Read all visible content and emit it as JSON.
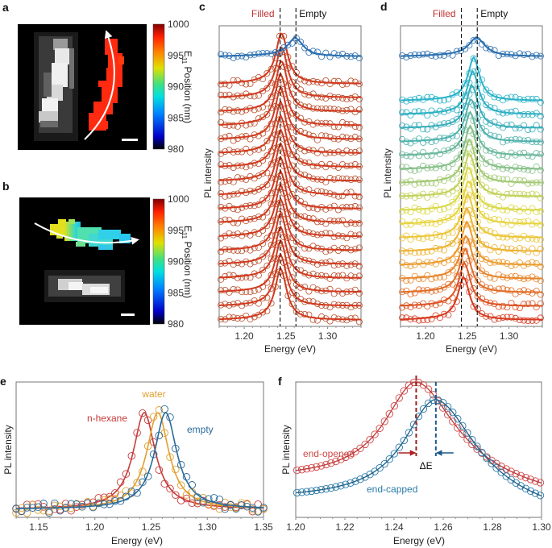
{
  "figure": {
    "panels": [
      "a",
      "b",
      "c",
      "d",
      "e",
      "f"
    ]
  },
  "chart_data": [
    {
      "id": "a",
      "type": "heatmap",
      "label": "a",
      "description": "PL image (grayscale) and E11 position map of a single nanotube with curved arrow and scale bar",
      "colorbar": {
        "label_main": "E",
        "label_sub": "11",
        "label_rest": " Position (nm)",
        "ticks": [
          1000,
          995,
          990,
          985,
          980
        ],
        "range": [
          980,
          1000
        ],
        "colors": [
          "#000000",
          "#0000c8",
          "#0080ff",
          "#00e0e0",
          "#40e080",
          "#e0e000",
          "#ff8000",
          "#ff2000",
          "#800000"
        ]
      },
      "map_value_nm": 998,
      "map_color": "#ff2a10"
    },
    {
      "id": "b",
      "type": "heatmap",
      "label": "b",
      "description": "E11 position map (gradient from yellow-green to cyan along arrow) above grayscale PL image with scale bar",
      "colorbar": {
        "label_main": "E",
        "label_sub": "11",
        "label_rest": " Position (nm)",
        "ticks": [
          1000,
          995,
          990,
          985,
          980
        ],
        "range": [
          980,
          1000
        ]
      },
      "map_values_nm_along_arrow": [
        993,
        991,
        990,
        989,
        988,
        987,
        987
      ]
    },
    {
      "id": "c",
      "type": "line",
      "label": "c",
      "xlabel": "Energy (eV)",
      "ylabel": "PL intensity",
      "xlim": [
        1.17,
        1.34
      ],
      "xticks": [
        1.2,
        1.25,
        1.3
      ],
      "annotations": {
        "filled": "Filled",
        "empty": "Empty"
      },
      "reference_lines_eV": {
        "filled": 1.243,
        "empty": 1.262
      },
      "top_series": {
        "name": "empty",
        "peak_eV": 1.262,
        "width_eV": 0.011,
        "color": "#2a6fb0"
      },
      "stacked_series": {
        "count": 18,
        "color": "#d2391e",
        "marker_color": "#b8502e",
        "peak_eV": [
          1.245,
          1.245,
          1.245,
          1.244,
          1.244,
          1.244,
          1.244,
          1.244,
          1.244,
          1.244,
          1.244,
          1.244,
          1.244,
          1.244,
          1.244,
          1.244,
          1.244,
          1.244
        ]
      }
    },
    {
      "id": "d",
      "type": "line",
      "label": "d",
      "xlabel": "Energy (eV)",
      "ylabel": "PL intensity",
      "xlim": [
        1.17,
        1.34
      ],
      "xticks": [
        1.2,
        1.25,
        1.3
      ],
      "annotations": {
        "filled": "Filled",
        "empty": "Empty"
      },
      "reference_lines_eV": {
        "filled": 1.243,
        "empty": 1.262
      },
      "top_series": {
        "name": "empty",
        "peak_eV": 1.262,
        "width_eV": 0.012,
        "color": "#2a6fb0"
      },
      "stacked_series": {
        "count": 17,
        "colors": [
          "#2bb3c9",
          "#2eb0c4",
          "#3aaebb",
          "#4fb2ae",
          "#6ab89c",
          "#86c088",
          "#a3c972",
          "#c2d25a",
          "#d9d848",
          "#e6d440",
          "#ebc63a",
          "#ecb334",
          "#ec9d30",
          "#e8862c",
          "#e26d28",
          "#dc5424",
          "#d63a20"
        ],
        "peak_eV": [
          1.258,
          1.257,
          1.256,
          1.255,
          1.254,
          1.254,
          1.253,
          1.253,
          1.252,
          1.252,
          1.251,
          1.25,
          1.25,
          1.249,
          1.248,
          1.247,
          1.246
        ]
      }
    },
    {
      "id": "e",
      "type": "line",
      "label": "e",
      "xlabel": "Energy (eV)",
      "ylabel": "PL intensity",
      "xlim": [
        1.13,
        1.35
      ],
      "xticks": [
        1.15,
        1.2,
        1.25,
        1.3,
        1.35
      ],
      "series": [
        {
          "name": "n-hexane",
          "peak_eV": 1.244,
          "width_eV": 0.012,
          "color": "#c83a3a"
        },
        {
          "name": "water",
          "peak_eV": 1.256,
          "width_eV": 0.012,
          "color": "#e0a030"
        },
        {
          "name": "empty",
          "peak_eV": 1.263,
          "width_eV": 0.012,
          "color": "#2a6a9a"
        }
      ]
    },
    {
      "id": "f",
      "type": "line",
      "label": "f",
      "xlabel": "Energy (eV)",
      "ylabel": "PL intensity",
      "xlim": [
        1.2,
        1.3
      ],
      "xticks": [
        1.2,
        1.22,
        1.24,
        1.26,
        1.28,
        1.3
      ],
      "series": [
        {
          "name": "end-opened",
          "peak_eV": 1.249,
          "width_eV": 0.02,
          "baseline": 0.28,
          "amplitude": 0.72,
          "color": "#d04848"
        },
        {
          "name": "end-capped",
          "peak_eV": 1.257,
          "width_eV": 0.02,
          "baseline": 0.13,
          "amplitude": 0.74,
          "color": "#2a7aa8"
        }
      ],
      "annotation": "ΔE"
    }
  ]
}
